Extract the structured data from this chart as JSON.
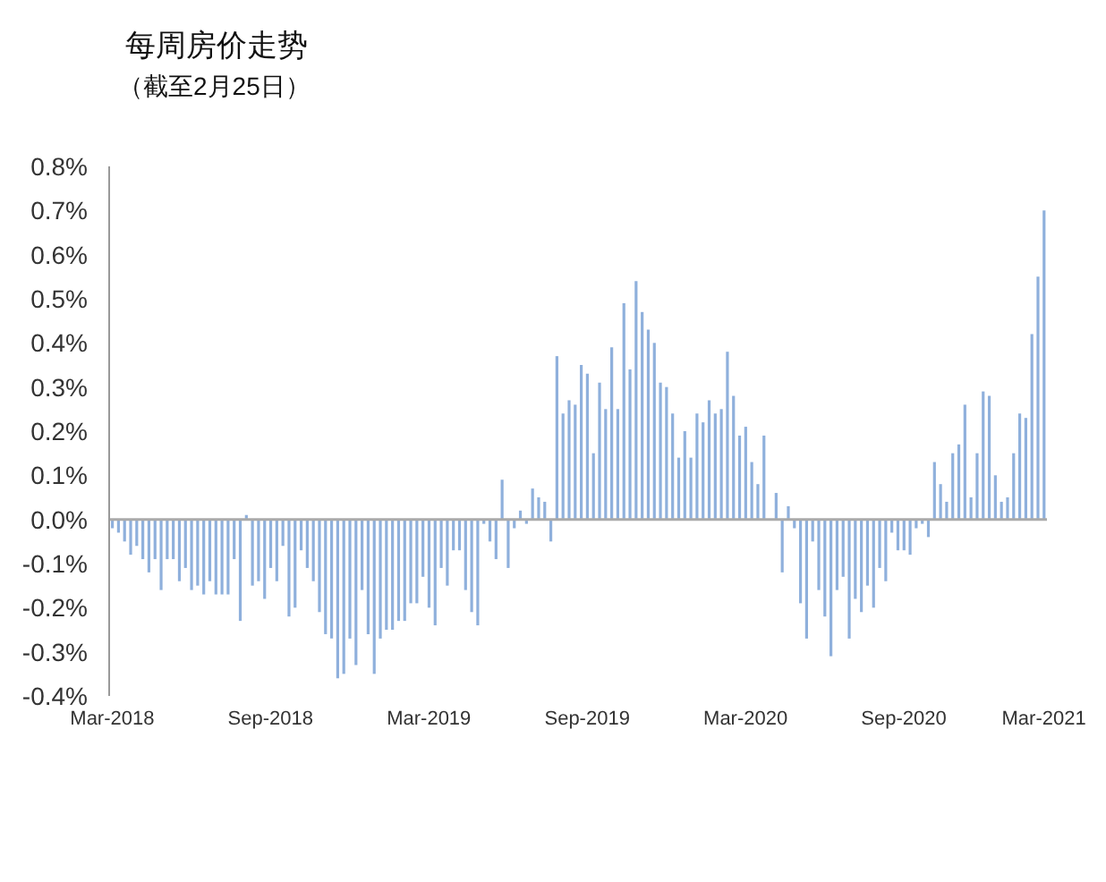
{
  "chart_data": {
    "type": "bar",
    "title": "每周房价走势",
    "subtitle": "（截至2月25日）",
    "categories": [
      "Mar-2018",
      null,
      null,
      null,
      null,
      null,
      null,
      null,
      null,
      null,
      null,
      null,
      null,
      null,
      null,
      null,
      null,
      null,
      null,
      null,
      null,
      null,
      null,
      null,
      null,
      null,
      "Sep-2018",
      null,
      null,
      null,
      null,
      null,
      null,
      null,
      null,
      null,
      null,
      null,
      null,
      null,
      null,
      null,
      null,
      null,
      null,
      null,
      null,
      null,
      null,
      null,
      null,
      null,
      "Mar-2019",
      null,
      null,
      null,
      null,
      null,
      null,
      null,
      null,
      null,
      null,
      null,
      null,
      null,
      null,
      null,
      null,
      null,
      null,
      null,
      null,
      null,
      null,
      null,
      null,
      null,
      "Sep-2019",
      null,
      null,
      null,
      null,
      null,
      null,
      null,
      null,
      null,
      null,
      null,
      null,
      null,
      null,
      null,
      null,
      null,
      null,
      null,
      null,
      null,
      null,
      null,
      null,
      null,
      "Mar-2020",
      null,
      null,
      null,
      null,
      null,
      null,
      null,
      null,
      null,
      null,
      null,
      null,
      null,
      null,
      null,
      null,
      null,
      null,
      null,
      null,
      null,
      null,
      null,
      null,
      null,
      "Sep-2020",
      null,
      null,
      null,
      null,
      null,
      null,
      null,
      null,
      null,
      null,
      null,
      null,
      null,
      null,
      null,
      null,
      null,
      null,
      null,
      null,
      null,
      null,
      "Mar-2021"
    ],
    "values": [
      -0.02,
      -0.03,
      -0.05,
      -0.08,
      -0.06,
      -0.09,
      -0.12,
      -0.09,
      -0.16,
      -0.09,
      -0.09,
      -0.14,
      -0.11,
      -0.16,
      -0.15,
      -0.17,
      -0.14,
      -0.17,
      -0.17,
      -0.17,
      -0.09,
      -0.23,
      0.01,
      -0.15,
      -0.14,
      -0.18,
      -0.11,
      -0.14,
      -0.06,
      -0.22,
      -0.2,
      -0.07,
      -0.11,
      -0.14,
      -0.21,
      -0.26,
      -0.27,
      -0.36,
      -0.35,
      -0.27,
      -0.33,
      -0.16,
      -0.26,
      -0.35,
      -0.27,
      -0.25,
      -0.25,
      -0.23,
      -0.23,
      -0.19,
      -0.19,
      -0.13,
      -0.2,
      -0.24,
      -0.11,
      -0.15,
      -0.07,
      -0.07,
      -0.16,
      -0.21,
      -0.24,
      -0.01,
      -0.05,
      -0.09,
      0.09,
      -0.11,
      -0.02,
      0.02,
      -0.01,
      0.07,
      0.05,
      0.04,
      -0.05,
      0.37,
      0.24,
      0.27,
      0.26,
      0.35,
      0.33,
      0.15,
      0.31,
      0.25,
      0.39,
      0.25,
      0.49,
      0.34,
      0.54,
      0.47,
      0.43,
      0.4,
      0.31,
      0.3,
      0.24,
      0.14,
      0.2,
      0.14,
      0.24,
      0.22,
      0.27,
      0.24,
      0.25,
      0.38,
      0.28,
      0.19,
      0.21,
      0.13,
      0.08,
      0.19,
      0.0,
      0.06,
      -0.12,
      0.03,
      -0.02,
      -0.19,
      -0.27,
      -0.05,
      -0.16,
      -0.22,
      -0.31,
      -0.16,
      -0.13,
      -0.27,
      -0.18,
      -0.21,
      -0.15,
      -0.2,
      -0.11,
      -0.14,
      -0.03,
      -0.07,
      -0.07,
      -0.08,
      -0.02,
      -0.01,
      -0.04,
      0.13,
      0.08,
      0.04,
      0.15,
      0.17,
      0.26,
      0.05,
      0.15,
      0.29,
      0.28,
      0.1,
      0.04,
      0.05,
      0.15,
      0.24,
      0.23,
      0.42,
      0.55,
      0.7
    ],
    "color": "#8fb0dc",
    "ylim": [
      -0.4,
      0.8
    ],
    "yticks": [
      {
        "value": -0.4,
        "label": "-0.4%"
      },
      {
        "value": -0.3,
        "label": "-0.3%"
      },
      {
        "value": -0.2,
        "label": "-0.2%"
      },
      {
        "value": -0.1,
        "label": "-0.1%"
      },
      {
        "value": 0,
        "label": "0.0%"
      },
      {
        "value": 0.1,
        "label": "0.1%"
      },
      {
        "value": 0.2,
        "label": "0.2%"
      },
      {
        "value": 0.3,
        "label": "0.3%"
      },
      {
        "value": 0.4,
        "label": "0.4%"
      },
      {
        "value": 0.5,
        "label": "0.5%"
      },
      {
        "value": 0.6,
        "label": "0.6%"
      },
      {
        "value": 0.7,
        "label": "0.7%"
      },
      {
        "value": 0.8,
        "label": "0.8%"
      }
    ]
  }
}
